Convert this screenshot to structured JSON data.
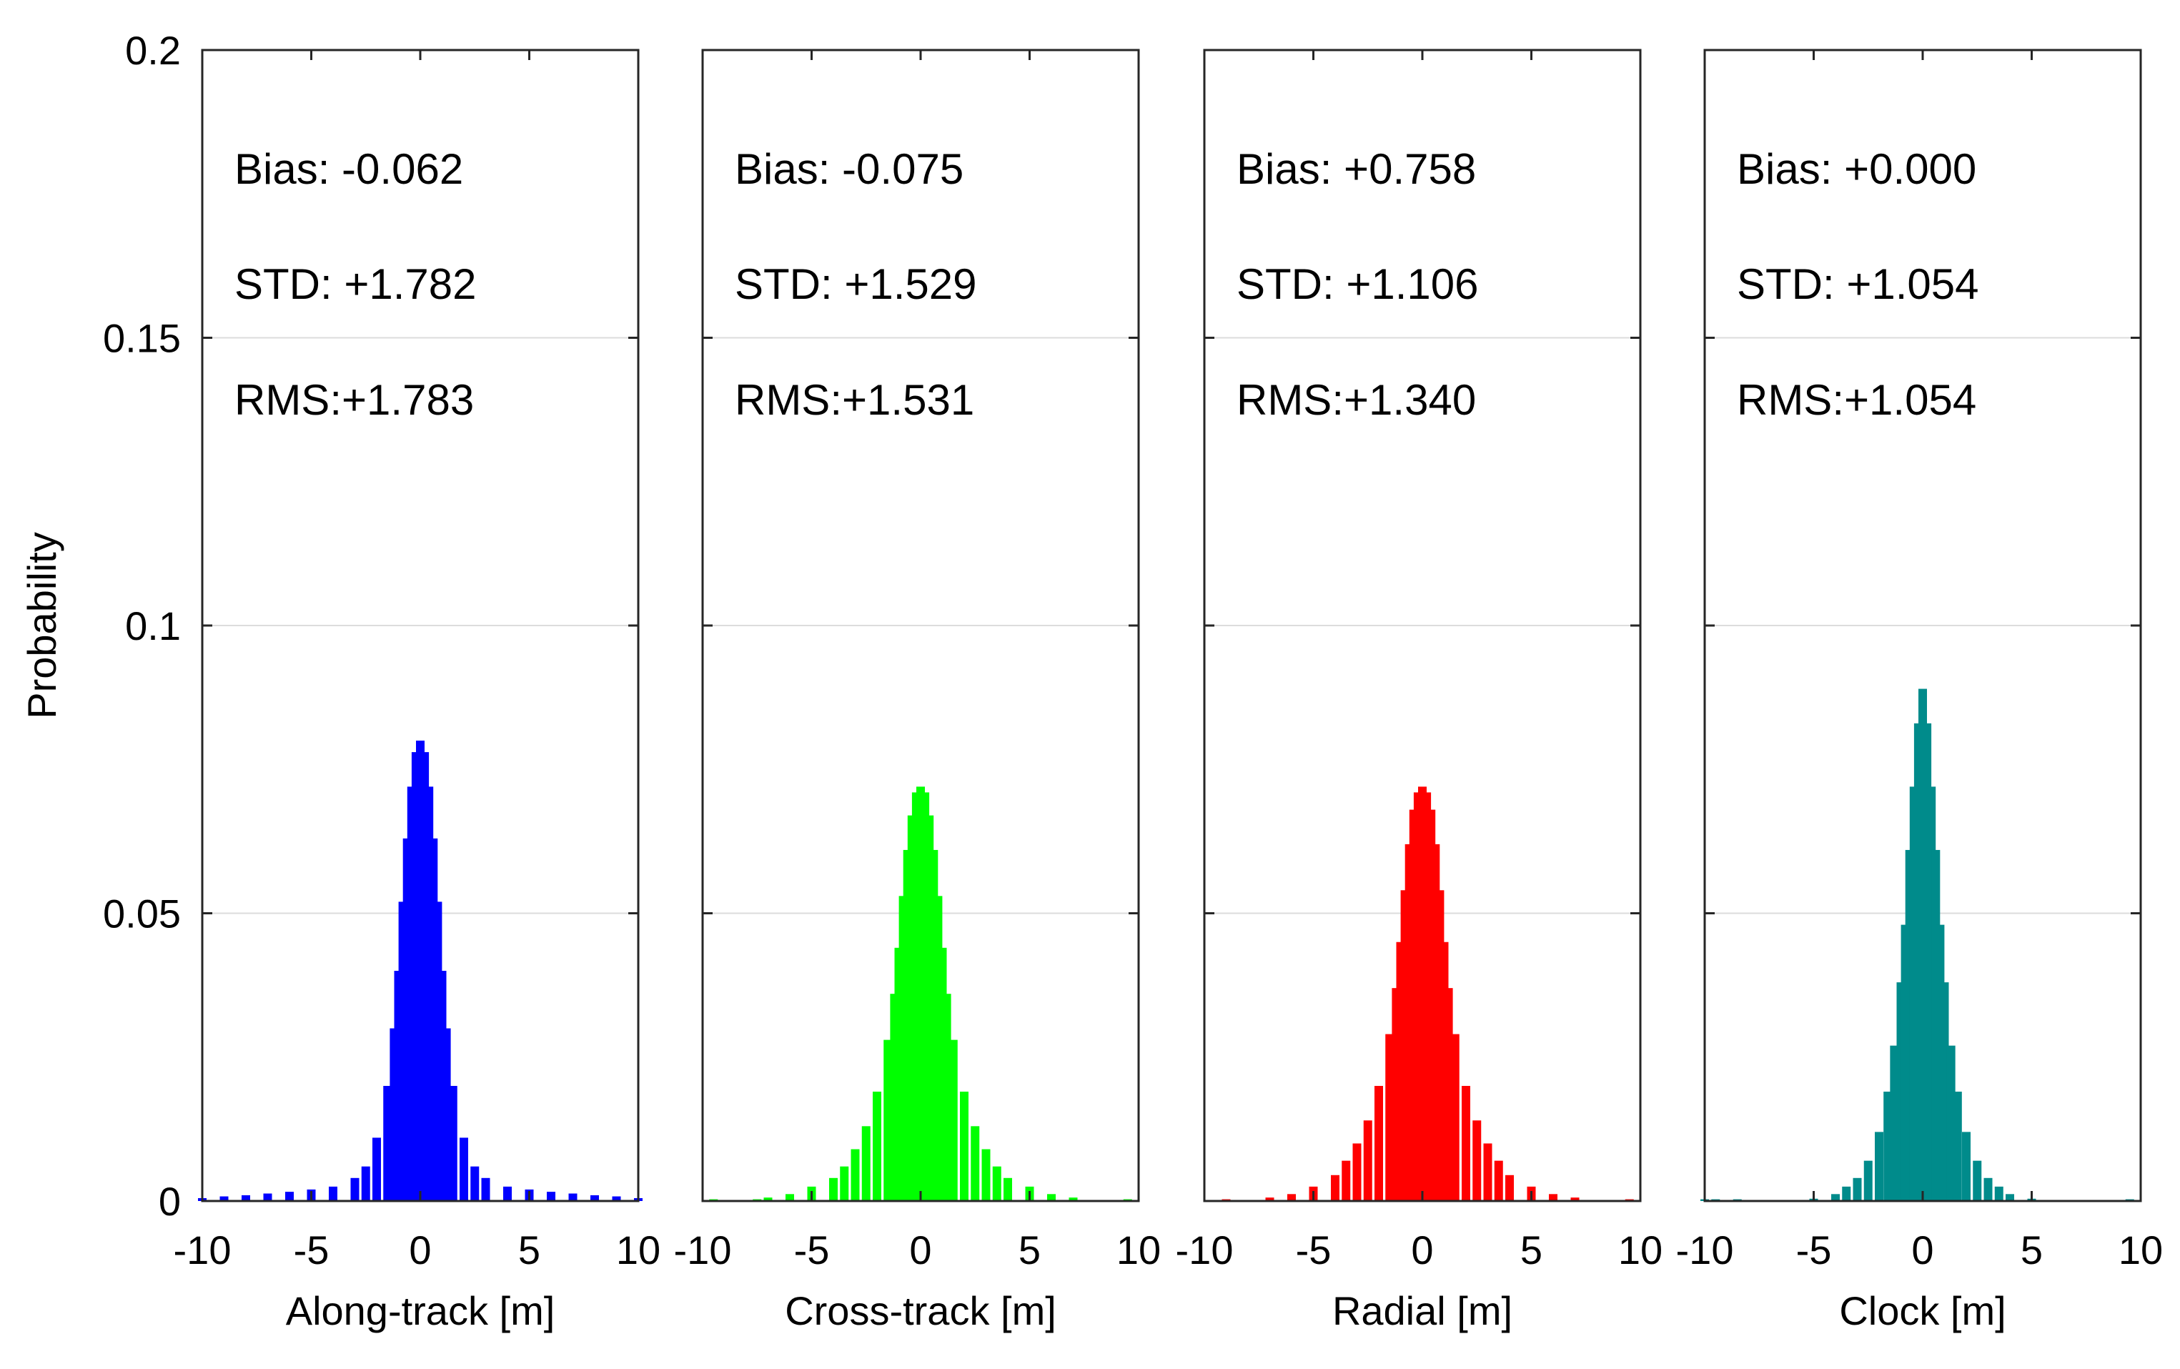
{
  "figure": {
    "ylabel": "Probability",
    "ylim": [
      0,
      0.2
    ],
    "yticks": [
      0,
      0.05,
      0.1,
      0.15,
      0.2
    ],
    "ytick_labels": [
      "0",
      "0.05",
      "0.1",
      "0.15",
      "0.2"
    ],
    "xlim": [
      -10,
      10
    ],
    "xticks": [
      -10,
      -5,
      0,
      5,
      10
    ],
    "xtick_labels": [
      "-10",
      "-5",
      "0",
      "5",
      "10"
    ]
  },
  "chart_data": [
    {
      "type": "bar",
      "xlabel": "Along-track [m]",
      "ylabel": "Probability",
      "color": "#0000FF",
      "stats": {
        "bias": "Bias: -0.062",
        "std": "STD: +1.782",
        "rms": "RMS:+1.783"
      },
      "xlim": [
        -10,
        10
      ],
      "ylim": [
        0,
        0.2
      ],
      "grid": "y",
      "x": [
        -10,
        -9,
        -8,
        -7,
        -6,
        -5,
        -4,
        -3,
        -2.5,
        -2,
        -1.5,
        -1.2,
        -1,
        -0.8,
        -0.6,
        -0.4,
        -0.2,
        0,
        0.2,
        0.4,
        0.6,
        0.8,
        1,
        1.2,
        1.5,
        2,
        2.5,
        3,
        4,
        5,
        6,
        7,
        8,
        9,
        10
      ],
      "values": [
        0.0005,
        0.0008,
        0.001,
        0.0013,
        0.0016,
        0.002,
        0.0025,
        0.004,
        0.006,
        0.011,
        0.02,
        0.03,
        0.04,
        0.052,
        0.063,
        0.072,
        0.078,
        0.08,
        0.078,
        0.072,
        0.063,
        0.052,
        0.04,
        0.03,
        0.02,
        0.011,
        0.006,
        0.004,
        0.0025,
        0.002,
        0.0016,
        0.0013,
        0.001,
        0.0008,
        0.0005
      ]
    },
    {
      "type": "bar",
      "xlabel": "Cross-track [m]",
      "ylabel": "",
      "color": "#00FF00",
      "stats": {
        "bias": "Bias: -0.075",
        "std": "STD: +1.529",
        "rms": "RMS:+1.531"
      },
      "xlim": [
        -10,
        10
      ],
      "ylim": [
        0,
        0.2
      ],
      "grid": "y",
      "x": [
        -9.5,
        -7.5,
        -7,
        -6,
        -5,
        -4,
        -3.5,
        -3,
        -2.5,
        -2,
        -1.5,
        -1.2,
        -1,
        -0.8,
        -0.6,
        -0.4,
        -0.2,
        0,
        0.2,
        0.4,
        0.6,
        0.8,
        1,
        1.2,
        1.5,
        2,
        2.5,
        3,
        3.5,
        4,
        5,
        6,
        7,
        9.5
      ],
      "values": [
        0.0003,
        0.0003,
        0.0006,
        0.0012,
        0.0025,
        0.004,
        0.006,
        0.009,
        0.013,
        0.019,
        0.028,
        0.036,
        0.044,
        0.053,
        0.061,
        0.067,
        0.071,
        0.072,
        0.071,
        0.067,
        0.061,
        0.053,
        0.044,
        0.036,
        0.028,
        0.019,
        0.013,
        0.009,
        0.006,
        0.004,
        0.0025,
        0.0012,
        0.0006,
        0.0003
      ]
    },
    {
      "type": "bar",
      "xlabel": "Radial [m]",
      "ylabel": "",
      "color": "#FF0000",
      "stats": {
        "bias": "Bias: +0.758",
        "std": "STD: +1.106",
        "rms": "RMS:+1.340"
      },
      "xlim": [
        -10,
        10
      ],
      "ylim": [
        0,
        0.2
      ],
      "grid": "y",
      "x": [
        -9,
        -7,
        -6,
        -5,
        -4,
        -3.5,
        -3,
        -2.5,
        -2,
        -1.5,
        -1.2,
        -1,
        -0.8,
        -0.6,
        -0.4,
        -0.2,
        0,
        0.2,
        0.4,
        0.6,
        0.8,
        1,
        1.2,
        1.5,
        2,
        2.5,
        3,
        3.5,
        4,
        5,
        6,
        7,
        9.5
      ],
      "values": [
        0.0003,
        0.0006,
        0.0012,
        0.0025,
        0.0045,
        0.007,
        0.01,
        0.014,
        0.02,
        0.029,
        0.037,
        0.045,
        0.054,
        0.062,
        0.068,
        0.071,
        0.072,
        0.071,
        0.068,
        0.062,
        0.054,
        0.045,
        0.037,
        0.029,
        0.02,
        0.014,
        0.01,
        0.007,
        0.0045,
        0.0025,
        0.0012,
        0.0006,
        0.0003
      ]
    },
    {
      "type": "bar",
      "xlabel": "Clock [m]",
      "ylabel": "",
      "color": "#008B8B",
      "stats": {
        "bias": "Bias: +0.000",
        "std": "STD: +1.054",
        "rms": "RMS:+1.054"
      },
      "xlim": [
        -10,
        10
      ],
      "ylim": [
        0,
        0.2
      ],
      "grid": "y",
      "x": [
        -10,
        -9.5,
        -8.5,
        -5,
        -4,
        -3.5,
        -3,
        -2.5,
        -2,
        -1.6,
        -1.3,
        -1,
        -0.8,
        -0.6,
        -0.4,
        -0.2,
        0,
        0.2,
        0.4,
        0.6,
        0.8,
        1,
        1.3,
        1.6,
        2,
        2.5,
        3,
        3.5,
        4,
        5,
        9.5
      ],
      "values": [
        0.0003,
        0.0003,
        0.0003,
        0.0004,
        0.0012,
        0.0025,
        0.004,
        0.007,
        0.012,
        0.019,
        0.027,
        0.038,
        0.048,
        0.061,
        0.072,
        0.083,
        0.089,
        0.083,
        0.072,
        0.061,
        0.048,
        0.038,
        0.027,
        0.019,
        0.012,
        0.007,
        0.004,
        0.0025,
        0.0012,
        0.0004,
        0.0003
      ]
    }
  ]
}
